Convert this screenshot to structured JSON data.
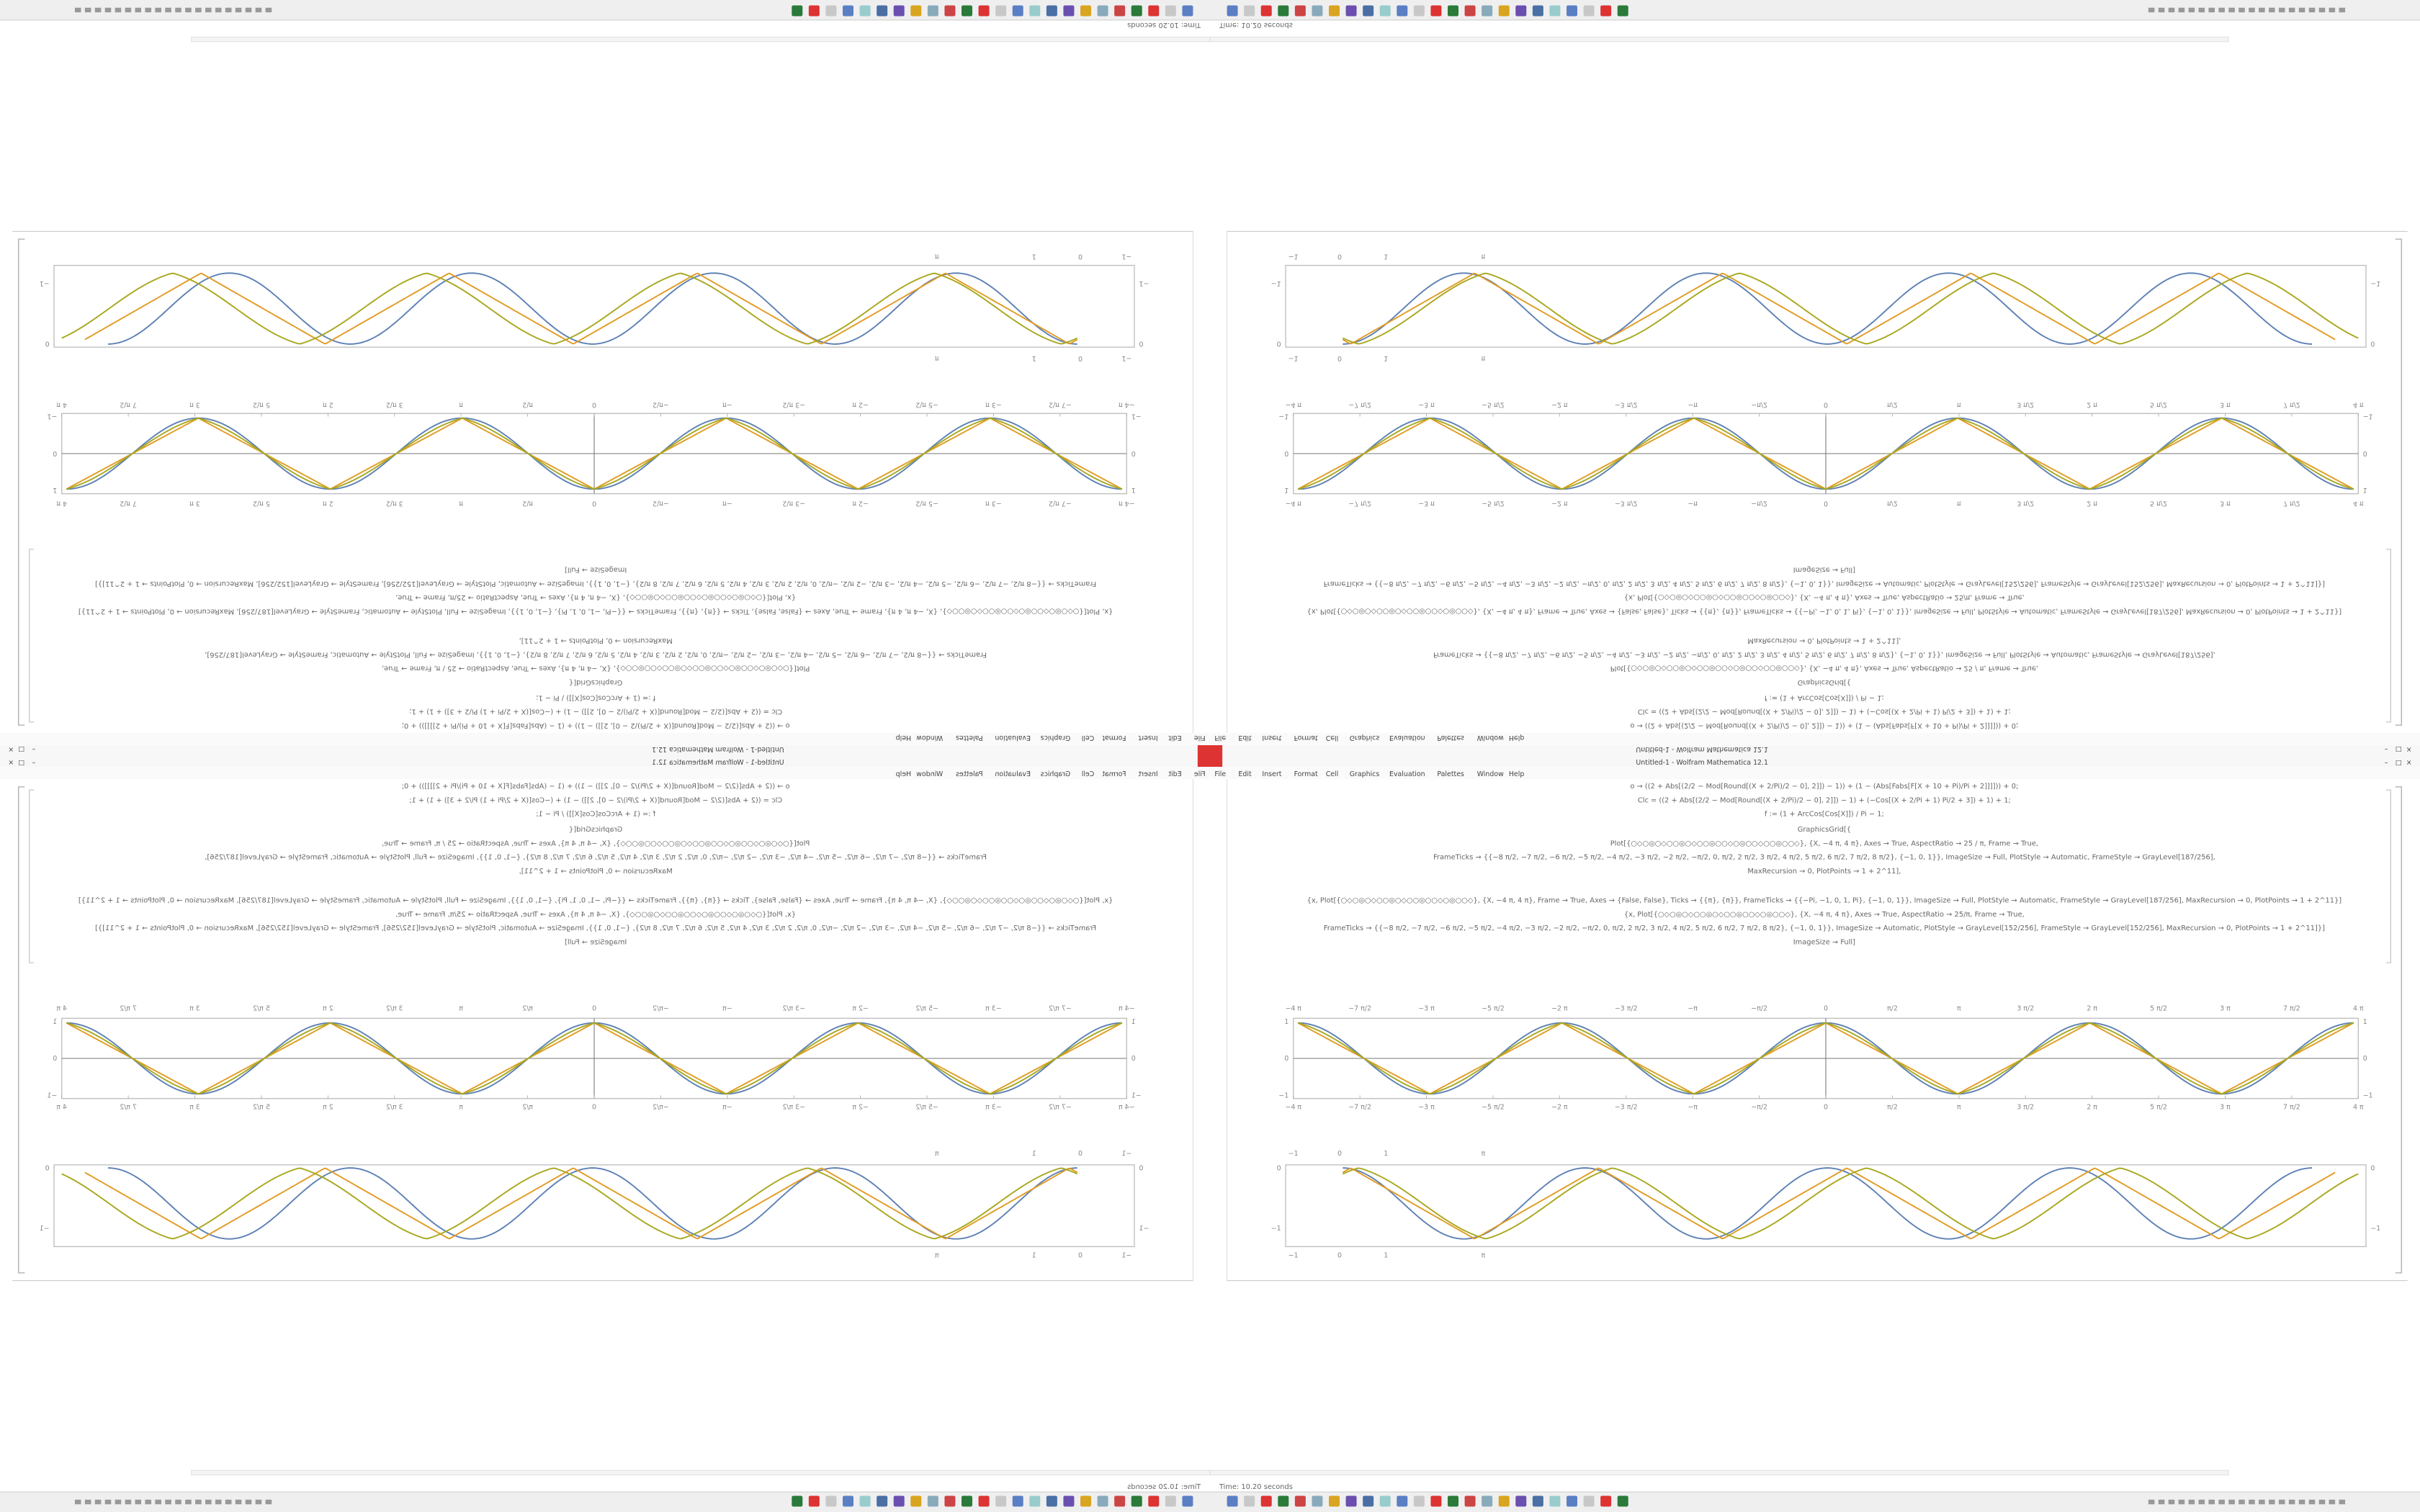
{
  "status": "Time: 10.20 seconds",
  "window_title": "Untitled-1 - Wolfram Mathematica 12.1",
  "menu": [
    "File",
    "Edit",
    "Insert",
    "Format",
    "Cell",
    "Graphics",
    "Evaluation",
    "Palettes",
    "Window",
    "Help"
  ],
  "code": [
    "o → ((2 + Abs[(2/2 − Mod[Round[(X + 2/Pi)/2 − 0], 2]]) − 1)) + (1 − (Abs[Fabs[F[X + 10 + Pi)/Pi + 2]]]])) + 0;",
    "Clc = ((2 + Abs[(2/2 − Mod[Round[(X + 2/Pi)/2 − 0], 2]]) − 1) + (−Cos[(X + 2/Pi + 1) Pi/2 + 3]) + 1) + 1;",
    "f := (1 + ArcCos[Cos[X]]) / Pi − 1;",
    "GraphicsGrid[{",
    "Plot[{○◇○◎○◇○○◎○◇○○◎○○◇○◎○○◇○○◎○○◇}, {X, −4 π, 4 π}, Axes → True, AspectRatio → 25 / π, Frame → True,",
    "FrameTicks → {{−8 π/2, −7 π/2, −6 π/2, −5 π/2, −4 π/2, −3 π/2, −2 π/2, −π/2, 0, π/2, 2 π/2, 3 π/2, 4 π/2, 5 π/2, 6 π/2, 7 π/2, 8 π/2}, {−1, 0, 1}}, ImageSize → Full, PlotStyle → Automatic, FrameStyle → GrayLevel[187/256],",
    "MaxRecursion → 0, PlotPoints → 1 + 2^11],",
    "{x, Plot[{○◇○◎○◇○○◎○◇○○◎○○◇○◎○○◇}, {X, −4 π, 4 π}, Frame → True, Axes → {False, False}, Ticks → {{π}, {π}}, FrameTicks → {{−Pi, −1, 0, 1, Pi}, {−1, 0, 1}}, ImageSize → Full, PlotStyle → Automatic, FrameStyle → GrayLevel[187/256], MaxRecursion → 0, PlotPoints → 1 + 2^11}]",
    "{x, Plot[{○◇○◎○◇○○◎○◇○○◎○○◇○◎○○◇}, {X, −4 π, 4 π}, Axes → True, AspectRatio → 25/π, Frame → True,",
    "FrameTicks → {{−8 π/2, −7 π/2, −6 π/2, −5 π/2, −4 π/2, −3 π/2, −2 π/2, −π/2, 0, π/2, 2 π/2, 3 π/2, 4 π/2, 5 π/2, 6 π/2, 7 π/2, 8 π/2}, {−1, 0, 1}}, ImageSize → Automatic, PlotStyle → GrayLevel[152/256], FrameStyle → GrayLevel[152/256], MaxRecursion → 0, PlotPoints → 1 + 2^11]}]",
    "ImageSize → Full]"
  ],
  "plot_x_ticks": [
    "−4 π",
    "−7 π/2",
    "−3 π",
    "−5 π/2",
    "−2 π",
    "−3 π/2",
    "−π",
    "−π/2",
    "0",
    "π/2",
    "π",
    "3 π/2",
    "2 π",
    "5 π/2",
    "3 π",
    "7 π/2",
    "4 π"
  ],
  "plot_y_ticks": [
    "−1",
    "0",
    "1"
  ],
  "plot2_x_ticks": [
    "−1",
    "0",
    "1",
    "π"
  ],
  "plot2_y_ticks": [
    "−1",
    "0"
  ]
}
